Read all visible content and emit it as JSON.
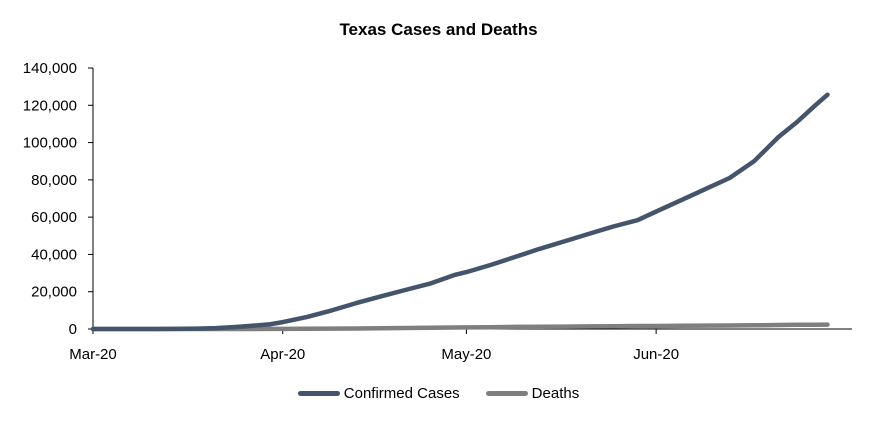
{
  "chart_data": {
    "type": "line",
    "title": "Texas Cases and Deaths",
    "xlabel": "",
    "ylabel": "",
    "x_ticks": [
      "Mar-20",
      "Apr-20",
      "May-20",
      "Jun-20"
    ],
    "x_tick_dates": [
      "2020-03-01",
      "2020-04-01",
      "2020-05-01",
      "2020-06-01"
    ],
    "x": [
      "2020-03-01",
      "2020-03-06",
      "2020-03-11",
      "2020-03-14",
      "2020-03-18",
      "2020-03-21",
      "2020-03-24",
      "2020-03-27",
      "2020-03-30",
      "2020-04-01",
      "2020-04-05",
      "2020-04-09",
      "2020-04-13",
      "2020-04-17",
      "2020-04-21",
      "2020-04-25",
      "2020-04-29",
      "2020-05-01",
      "2020-05-05",
      "2020-05-09",
      "2020-05-13",
      "2020-05-17",
      "2020-05-21",
      "2020-05-25",
      "2020-05-29",
      "2020-06-01",
      "2020-06-05",
      "2020-06-09",
      "2020-06-13",
      "2020-06-17",
      "2020-06-21",
      "2020-06-24",
      "2020-06-27",
      "2020-06-29"
    ],
    "ylim": [
      0,
      140000
    ],
    "y_ticks": [
      "0",
      "20,000",
      "40,000",
      "60,000",
      "80,000",
      "100,000",
      "120,000",
      "140,000"
    ],
    "grid": false,
    "legend_position": "bottom",
    "series": [
      {
        "name": "Confirmed Cases",
        "color": "#44546a",
        "values": [
          0,
          0,
          10,
          50,
          200,
          500,
          1000,
          1700,
          2600,
          3700,
          6500,
          10000,
          13900,
          17500,
          20900,
          24300,
          28900,
          30500,
          34400,
          38700,
          43000,
          47000,
          51000,
          55000,
          58400,
          63000,
          69000,
          75000,
          81000,
          90000,
          103000,
          111000,
          120000,
          125700
        ]
      },
      {
        "name": "Deaths",
        "color": "#7f7f7f",
        "values": [
          0,
          0,
          0,
          0,
          2,
          5,
          12,
          20,
          40,
          60,
          120,
          190,
          270,
          400,
          510,
          620,
          780,
          850,
          980,
          1100,
          1200,
          1310,
          1420,
          1500,
          1590,
          1630,
          1720,
          1800,
          1880,
          1980,
          2150,
          2230,
          2320,
          2370
        ]
      }
    ]
  }
}
